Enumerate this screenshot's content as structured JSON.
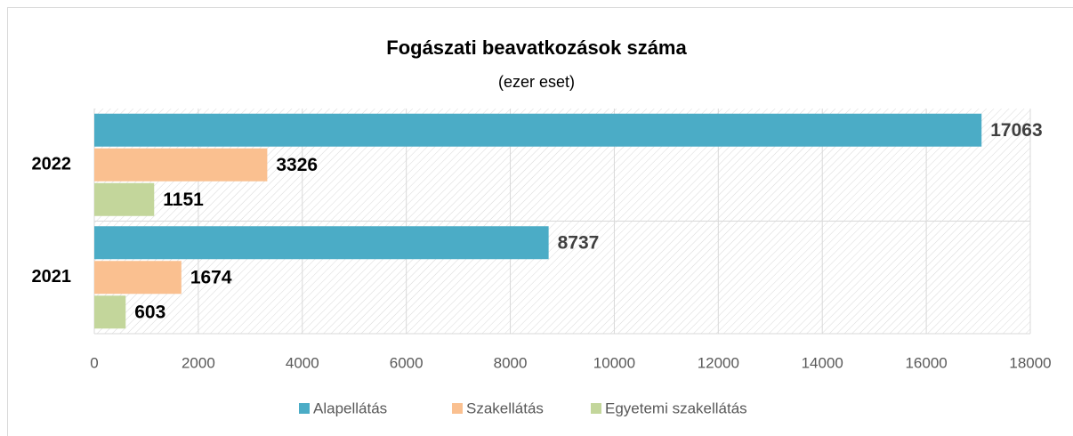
{
  "chart_data": {
    "type": "hbar",
    "title": "Fogászati beavatkozások száma",
    "subtitle": "(ezer eset)",
    "categories": [
      "2022",
      "2021"
    ],
    "series": [
      {
        "name": "Alapellátás",
        "color": "#4bacc6",
        "values": [
          17063,
          8737
        ]
      },
      {
        "name": "Szakellátás",
        "color": "#fac090",
        "values": [
          3326,
          1674
        ]
      },
      {
        "name": "Egyetemi szakellátás",
        "color": "#c3d69b",
        "values": [
          1151,
          603
        ]
      }
    ],
    "xlim": [
      0,
      18000
    ],
    "xticks": [
      0,
      2000,
      4000,
      6000,
      8000,
      10000,
      12000,
      14000,
      16000,
      18000
    ],
    "grid": true,
    "legend": "bottom"
  }
}
